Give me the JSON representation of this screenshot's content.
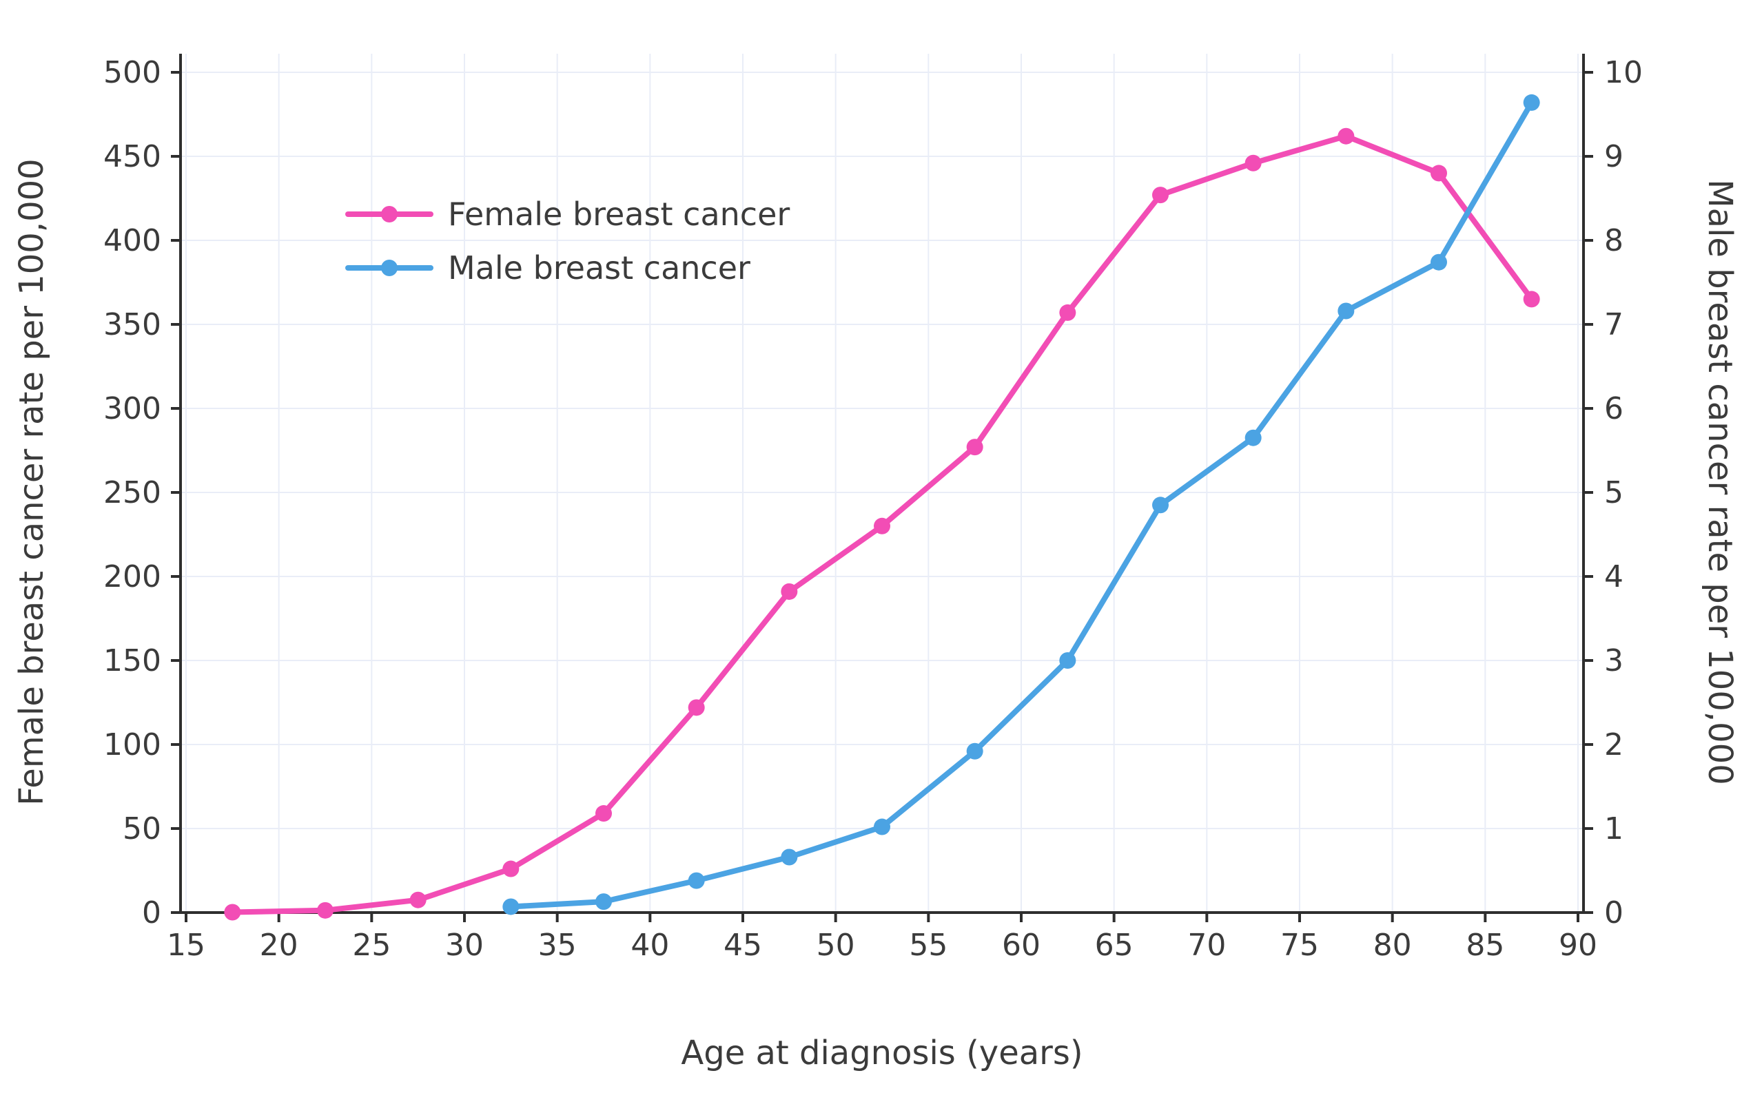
{
  "chart_data": {
    "type": "line",
    "title": "",
    "xlabel": "Age at diagnosis (years)",
    "ylabel_left": "Female breast cancer rate per 100,000",
    "ylabel_right": "Male breast cancer rate per 100,000",
    "xlim": [
      15,
      90
    ],
    "ylim_left": [
      0,
      500
    ],
    "ylim_right": [
      0,
      10
    ],
    "x_ticks": [
      15,
      20,
      25,
      30,
      35,
      40,
      45,
      50,
      55,
      60,
      65,
      70,
      75,
      80,
      85,
      90
    ],
    "y_ticks_left": [
      0,
      50,
      100,
      150,
      200,
      250,
      300,
      350,
      400,
      450,
      500
    ],
    "y_ticks_right": [
      0,
      1,
      2,
      3,
      4,
      5,
      6,
      7,
      8,
      9,
      10
    ],
    "grid": true,
    "legend_position": "upper-left-inside",
    "series": [
      {
        "name": "Female breast cancer",
        "axis": "left",
        "color": "#f24db5",
        "x": [
          17.5,
          22.5,
          27.5,
          32.5,
          37.5,
          42.5,
          47.5,
          52.5,
          57.5,
          62.5,
          67.5,
          72.5,
          77.5,
          82.5,
          87.5
        ],
        "values": [
          0.2,
          1.3,
          7.5,
          26,
          59,
          122,
          191,
          230,
          277,
          357,
          427,
          446,
          462,
          440,
          365
        ]
      },
      {
        "name": "Male breast cancer",
        "axis": "right",
        "color": "#4ba3e3",
        "x": [
          32.5,
          37.5,
          42.5,
          47.5,
          52.5,
          57.5,
          62.5,
          67.5,
          72.5,
          77.5,
          82.5,
          87.5
        ],
        "values": [
          0.07,
          0.13,
          0.38,
          0.66,
          1.02,
          1.92,
          3.0,
          4.85,
          5.65,
          7.16,
          7.74,
          9.64
        ]
      }
    ],
    "colors": {
      "axis": "#2e2e2e",
      "tick_label": "#3b3b3b",
      "grid": "#e9edf7",
      "female": "#f24db5",
      "male": "#4ba3e3"
    }
  }
}
